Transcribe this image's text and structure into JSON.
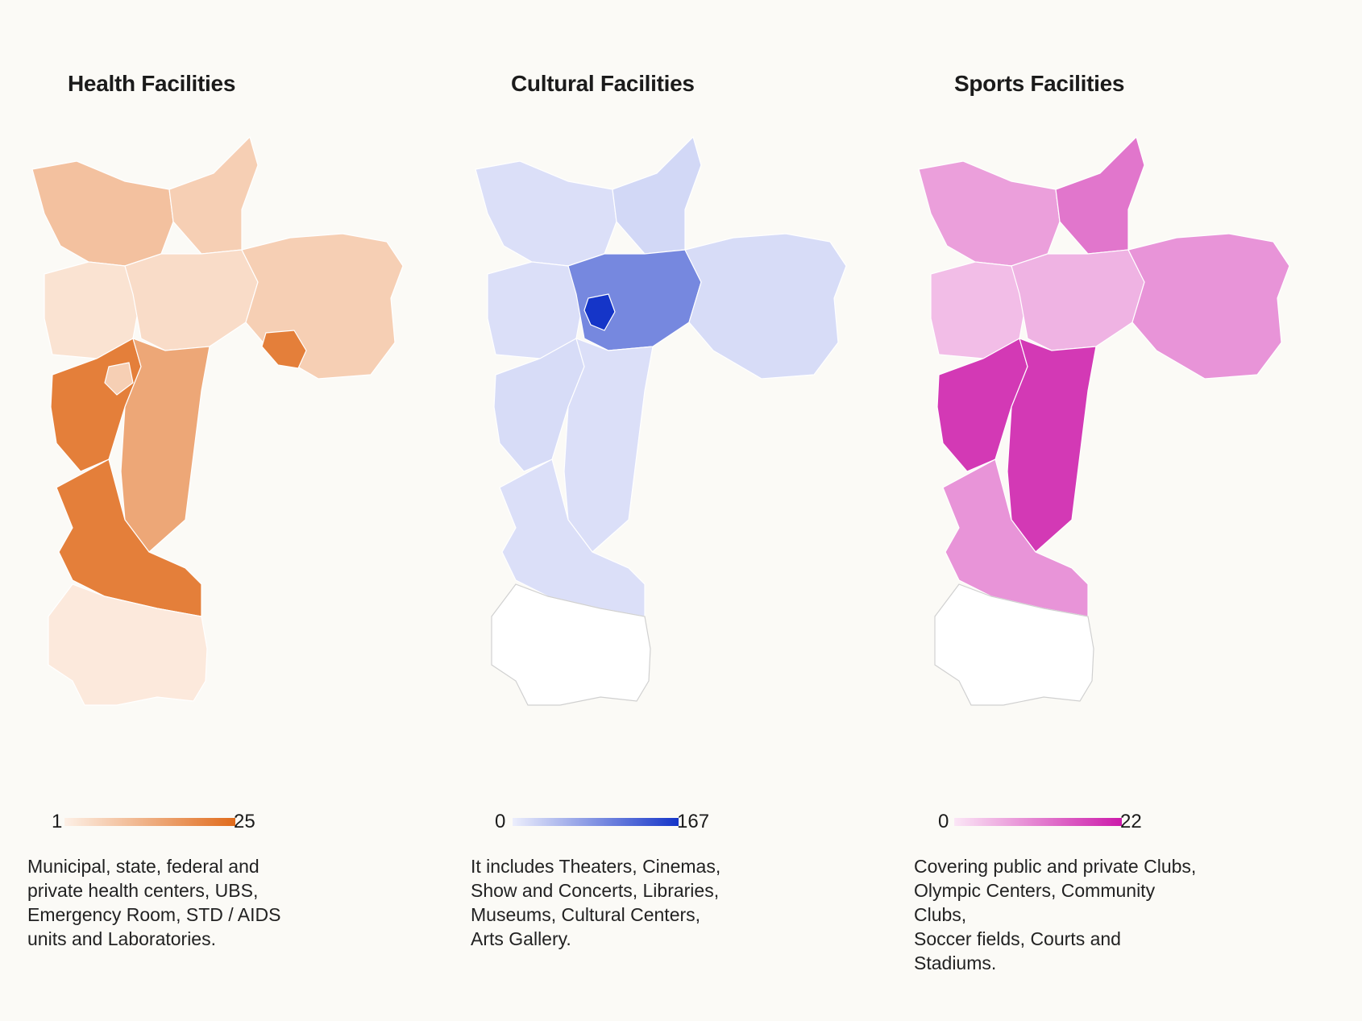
{
  "panels": [
    {
      "id": "health",
      "title": "Health Facilities",
      "legend": {
        "min": "1",
        "max": "25",
        "color_low": "#fdf0e6",
        "color_high": "#e06b1c"
      },
      "description": [
        "Municipal, state, federal and",
        "private health centers, UBS,",
        "Emergency Room, STD / AIDS",
        "units and Laboratories."
      ]
    },
    {
      "id": "cultural",
      "title": "Cultural Facilities",
      "legend": {
        "min": "0",
        "max": "167",
        "color_low": "#eceefc",
        "color_high": "#1535c8"
      },
      "description": [
        "It includes Theaters, Cinemas,",
        "Show and Concerts, Libraries,",
        "Museums, Cultural Centers,",
        "Arts Gallery."
      ]
    },
    {
      "id": "sports",
      "title": "Sports Facilities",
      "legend": {
        "min": "0",
        "max": "22",
        "color_low": "#fbe6f6",
        "color_high": "#cc1aaa"
      },
      "description": [
        "Covering public and private Clubs,",
        "Olympic Centers, Community Clubs,",
        "Soccer fields, Courts and Stadiums."
      ]
    }
  ],
  "map_levels": {
    "health": {
      "nw": 0.35,
      "n": 0.25,
      "w": 0.1,
      "c": 0.15,
      "e": 0.25,
      "e_spot": 0.85,
      "sw": 0.85,
      "sw_mid": 0.25,
      "s_center": 0.55,
      "s_south": 0.85,
      "s_tip": 0.05
    },
    "cultural": {
      "nw": 0.08,
      "n": 0.12,
      "w": 0.08,
      "c": 0.55,
      "c_core": 1.0,
      "e": 0.1,
      "sw": 0.1,
      "s_center": 0.08,
      "s_south": 0.08,
      "s_tip": 0
    },
    "sports": {
      "nw": 0.35,
      "n": 0.55,
      "w": 0.2,
      "c": 0.25,
      "e": 0.4,
      "sw": 0.85,
      "s_center": 0.85,
      "s_south": 0.4,
      "s_tip": 0
    }
  }
}
